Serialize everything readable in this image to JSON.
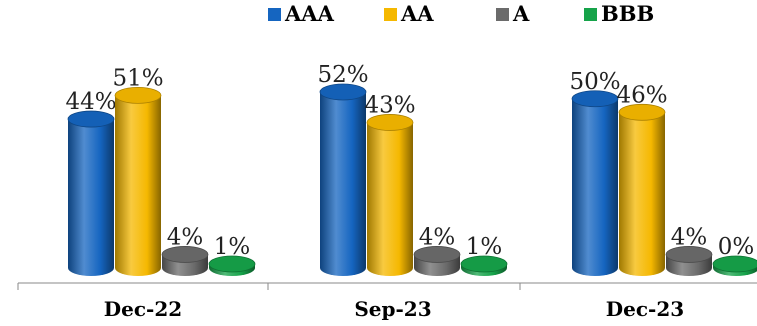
{
  "chart_data": {
    "type": "bar",
    "title": "",
    "xlabel": "",
    "ylabel": "",
    "categories": [
      "Dec-22",
      "Sep-23",
      "Dec-23"
    ],
    "series": [
      {
        "name": "AAA",
        "color": "#1565c0",
        "values": [
          44,
          52,
          50
        ],
        "labels": [
          "44%",
          "52%",
          "50%"
        ]
      },
      {
        "name": "AA",
        "color": "#f5b800",
        "values": [
          51,
          43,
          46
        ],
        "labels": [
          "51%",
          "43%",
          "46%"
        ]
      },
      {
        "name": "A",
        "color": "#6b6b6b",
        "values": [
          4,
          4,
          4
        ],
        "labels": [
          "4%",
          "4%",
          "4%"
        ]
      },
      {
        "name": "BBB",
        "color": "#16a34a",
        "values": [
          1,
          1,
          0
        ],
        "labels": [
          "1%",
          "1%",
          "0%"
        ]
      }
    ],
    "ylim": [
      0,
      60
    ],
    "grid": false,
    "legend_position": "top"
  }
}
